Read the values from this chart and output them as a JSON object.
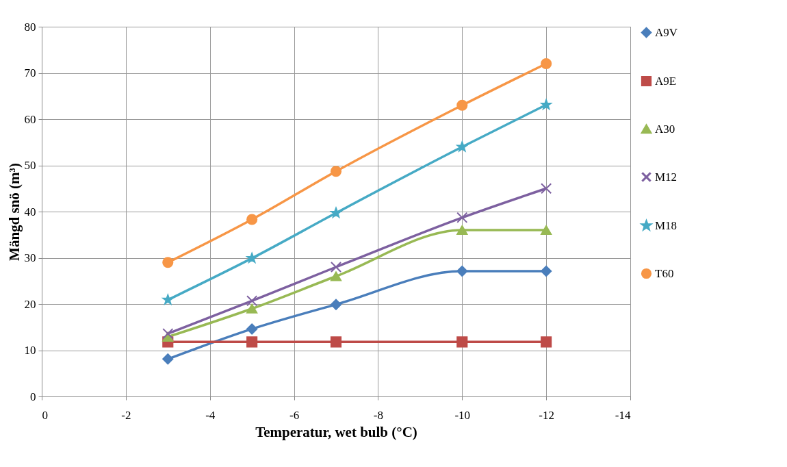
{
  "chart_data": {
    "type": "line",
    "xlabel": "Temperatur, wet bulb (°C)",
    "ylabel": "Mängd snö (m³)",
    "x": [
      -3,
      -5,
      -7,
      -10,
      -12
    ],
    "xlim": [
      0,
      -14
    ],
    "xticks": [
      0,
      -2,
      -4,
      -6,
      -8,
      -10,
      -12,
      -14
    ],
    "ylim": [
      0,
      80
    ],
    "yticks": [
      0,
      10,
      20,
      30,
      40,
      50,
      60,
      70,
      80
    ],
    "grid": true,
    "legend": "right",
    "series": [
      {
        "name": "A9V",
        "color": "#4a7ebb",
        "marker": "diamond",
        "values": [
          8.1,
          14.6,
          19.9,
          27.1,
          27.1
        ]
      },
      {
        "name": "A9E",
        "color": "#be4b48",
        "marker": "square",
        "values": [
          11.8,
          11.8,
          11.8,
          11.8,
          11.8
        ]
      },
      {
        "name": "A30",
        "color": "#98b954",
        "marker": "triangle",
        "values": [
          12.9,
          19,
          26,
          36,
          36
        ]
      },
      {
        "name": "M12",
        "color": "#7d60a0",
        "marker": "cross",
        "values": [
          13.6,
          20.7,
          28,
          38.7,
          45
        ]
      },
      {
        "name": "M18",
        "color": "#46aac5",
        "marker": "star",
        "values": [
          20.9,
          29.9,
          39.7,
          54,
          63.1
        ]
      },
      {
        "name": "T60",
        "color": "#f79646",
        "marker": "circle",
        "values": [
          29,
          38.3,
          48.7,
          63,
          72
        ]
      }
    ]
  }
}
